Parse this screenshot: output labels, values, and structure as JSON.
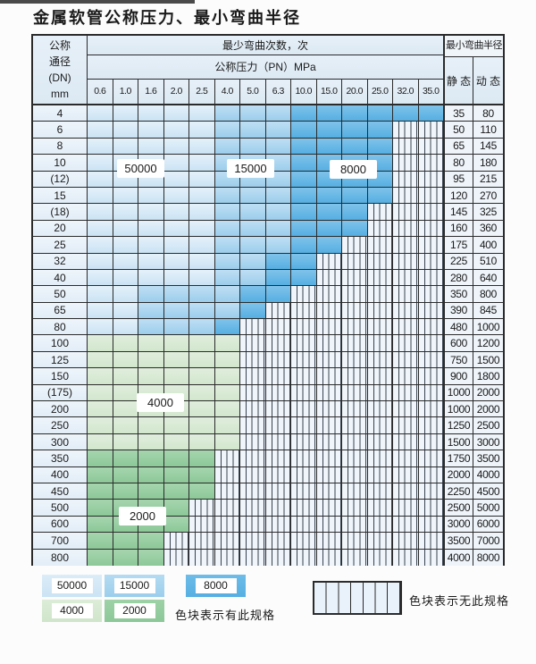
{
  "title": "金属软管公称压力、最小弯曲半径",
  "table": {
    "header": {
      "dn_lines": [
        "公称",
        "通径",
        "(DN)",
        "mm"
      ],
      "bend_cycles": "最少弯曲次数，次",
      "pressure": "公称压力（PN）MPa",
      "min_radius": "最小弯曲半径",
      "static_label": "静 态",
      "dynamic_label": "动 态",
      "pressures": [
        "0.6",
        "1.0",
        "1.6",
        "2.0",
        "2.5",
        "4.0",
        "5.0",
        "6.3",
        "10.0",
        "15.0",
        "20.0",
        "25.0",
        "32.0",
        "35.0"
      ]
    },
    "cell_codes": {
      "p": "50000次",
      "m": "15000次",
      "d": "8000次",
      "g": "4000次",
      "G": "2000次",
      "h": "无此规格"
    },
    "rows": [
      {
        "dn": "4",
        "cells": "pppppmmmdddddd",
        "static": "35",
        "dynamic": "80"
      },
      {
        "dn": "6",
        "cells": "pppppmmmddddhh",
        "static": "50",
        "dynamic": "110"
      },
      {
        "dn": "8",
        "cells": "pppppmmmddddhh",
        "static": "65",
        "dynamic": "145"
      },
      {
        "dn": "10",
        "cells": "pppppmmmddddhh",
        "static": "80",
        "dynamic": "180"
      },
      {
        "dn": "(12)",
        "cells": "pppppmmmddddhh",
        "static": "95",
        "dynamic": "215"
      },
      {
        "dn": "15",
        "cells": "pppppmmmddddhh",
        "static": "120",
        "dynamic": "270"
      },
      {
        "dn": "(18)",
        "cells": "pppppmmmdddhhh",
        "static": "145",
        "dynamic": "325"
      },
      {
        "dn": "20",
        "cells": "pppppmmmdddhhh",
        "static": "160",
        "dynamic": "360"
      },
      {
        "dn": "25",
        "cells": "pppppmmmddhhhh",
        "static": "175",
        "dynamic": "400"
      },
      {
        "dn": "32",
        "cells": "pppppmmddhhhhh",
        "static": "225",
        "dynamic": "510"
      },
      {
        "dn": "40",
        "cells": "pppppmmddhhhhh",
        "static": "280",
        "dynamic": "640"
      },
      {
        "dn": "50",
        "cells": "ppmmmmddhhhhhh",
        "static": "350",
        "dynamic": "800"
      },
      {
        "dn": "65",
        "cells": "ppmmmmdhhhhhhh",
        "static": "390",
        "dynamic": "845"
      },
      {
        "dn": "80",
        "cells": "ppmmmdhhhhhhhh",
        "static": "480",
        "dynamic": "1000"
      },
      {
        "dn": "100",
        "cells": "gggggghhhhhhhh",
        "static": "600",
        "dynamic": "1200"
      },
      {
        "dn": "125",
        "cells": "gggggghhhhhhhh",
        "static": "750",
        "dynamic": "1500"
      },
      {
        "dn": "150",
        "cells": "gggggghhhhhhhh",
        "static": "900",
        "dynamic": "1800"
      },
      {
        "dn": "(175)",
        "cells": "gggggghhhhhhhh",
        "static": "1000",
        "dynamic": "2000"
      },
      {
        "dn": "200",
        "cells": "gggggghhhhhhhh",
        "static": "1000",
        "dynamic": "2000"
      },
      {
        "dn": "250",
        "cells": "gggggghhhhhhhh",
        "static": "1250",
        "dynamic": "2500"
      },
      {
        "dn": "300",
        "cells": "gggggghhhhhhhh",
        "static": "1500",
        "dynamic": "3000"
      },
      {
        "dn": "350",
        "cells": "GGGGGhhhhhhhhh",
        "static": "1750",
        "dynamic": "3500"
      },
      {
        "dn": "400",
        "cells": "GGGGGhhhhhhhhh",
        "static": "2000",
        "dynamic": "4000"
      },
      {
        "dn": "450",
        "cells": "GGGGGhhhhhhhhh",
        "static": "2250",
        "dynamic": "4500"
      },
      {
        "dn": "500",
        "cells": "GGGGhhhhhhhhhh",
        "static": "2500",
        "dynamic": "5000"
      },
      {
        "dn": "600",
        "cells": "GGGGhhhhhhhhhh",
        "static": "3000",
        "dynamic": "6000"
      },
      {
        "dn": "700",
        "cells": "GGGhhhhhhhhhhh",
        "static": "3500",
        "dynamic": "7000"
      },
      {
        "dn": "800",
        "cells": "GGGhhhhhhhhhhh",
        "static": "4000",
        "dynamic": "8000"
      }
    ]
  },
  "overlays": [
    {
      "label": "50000"
    },
    {
      "label": "15000"
    },
    {
      "label": "8000"
    },
    {
      "label": "4000"
    },
    {
      "label": "2000"
    }
  ],
  "legend": {
    "items": [
      {
        "value": "50000",
        "shade": "p"
      },
      {
        "value": "15000",
        "shade": "m"
      },
      {
        "value": "8000",
        "shade": "d"
      },
      {
        "value": "4000",
        "shade": "g"
      },
      {
        "value": "2000",
        "shade": "G"
      }
    ],
    "has_spec_note": "色块表示有此规格",
    "no_spec_note": "色块表示无此规格"
  }
}
